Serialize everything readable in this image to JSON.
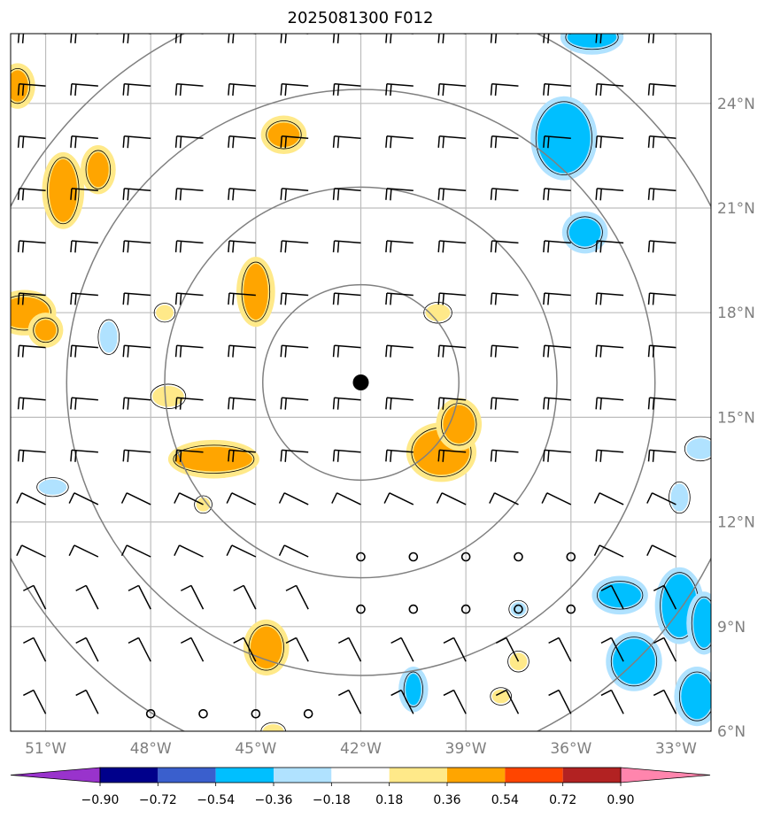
{
  "chart_data": {
    "type": "heatmap",
    "title": "2025081300 F012",
    "map": {
      "lon_range": [
        -52,
        -32
      ],
      "lat_range": [
        6,
        26
      ],
      "lon_ticks": [
        {
          "value": -51,
          "label": "51°W"
        },
        {
          "value": -48,
          "label": "48°W"
        },
        {
          "value": -45,
          "label": "45°W"
        },
        {
          "value": -42,
          "label": "42°W"
        },
        {
          "value": -39,
          "label": "39°W"
        },
        {
          "value": -36,
          "label": "36°W"
        },
        {
          "value": -33,
          "label": "33°W"
        }
      ],
      "lat_ticks": [
        {
          "value": 24,
          "label": "24°N"
        },
        {
          "value": 21,
          "label": "21°N"
        },
        {
          "value": 18,
          "label": "18°N"
        },
        {
          "value": 15,
          "label": "15°N"
        },
        {
          "value": 12,
          "label": "12°N"
        },
        {
          "value": 9,
          "label": "9°N"
        },
        {
          "value": 6,
          "label": "6°N"
        }
      ],
      "grid": true,
      "center": {
        "lon": -42,
        "lat": 16
      },
      "range_rings_deg": [
        2.8,
        5.6,
        8.4,
        11.2
      ],
      "wind_barb_spacing_deg": 1.5
    },
    "colorbar": {
      "orientation": "horizontal",
      "position": "bottom",
      "extend": "both",
      "ticks": [
        "−0.90",
        "−0.72",
        "−0.54",
        "−0.36",
        "−0.18",
        "0.18",
        "0.36",
        "0.54",
        "0.72",
        "0.90"
      ],
      "colors": [
        "#9933cc",
        "#00008b",
        "#3a5fcd",
        "#00bfff",
        "#b0e2ff",
        "#ffffff",
        "#ffe989",
        "#ffa500",
        "#ff4500",
        "#b22222",
        "#ff85ad"
      ]
    },
    "contour_areas": [
      {
        "lon": -51.8,
        "lat": 24.5,
        "rx": 0.3,
        "ry": 0.45,
        "level": 0.36
      },
      {
        "lon": -50.5,
        "lat": 21.5,
        "rx": 0.4,
        "ry": 0.9,
        "level": 0.36
      },
      {
        "lon": -49.5,
        "lat": 22.1,
        "rx": 0.3,
        "ry": 0.5,
        "level": 0.36
      },
      {
        "lon": -44.2,
        "lat": 23.1,
        "rx": 0.45,
        "ry": 0.35,
        "level": 0.36
      },
      {
        "lon": -45.0,
        "lat": 18.6,
        "rx": 0.35,
        "ry": 0.8,
        "level": 0.36
      },
      {
        "lon": -51.6,
        "lat": 18.0,
        "rx": 0.7,
        "ry": 0.45,
        "level": 0.36
      },
      {
        "lon": -51.0,
        "lat": 17.5,
        "rx": 0.3,
        "ry": 0.3,
        "level": 0.36
      },
      {
        "lon": -46.2,
        "lat": 13.8,
        "rx": 1.1,
        "ry": 0.35,
        "level": 0.36
      },
      {
        "lon": -39.7,
        "lat": 14.0,
        "rx": 0.8,
        "ry": 0.65,
        "level": 0.36
      },
      {
        "lon": -39.2,
        "lat": 14.8,
        "rx": 0.45,
        "ry": 0.55,
        "level": 0.36
      },
      {
        "lon": -44.7,
        "lat": 8.4,
        "rx": 0.45,
        "ry": 0.6,
        "level": 0.36
      },
      {
        "lon": -36.2,
        "lat": 23.0,
        "rx": 0.75,
        "ry": 1.0,
        "level": -0.36
      },
      {
        "lon": -35.6,
        "lat": 20.3,
        "rx": 0.45,
        "ry": 0.4,
        "level": -0.36
      },
      {
        "lon": -35.4,
        "lat": 25.9,
        "rx": 0.7,
        "ry": 0.3,
        "level": -0.36
      },
      {
        "lon": -34.6,
        "lat": 9.9,
        "rx": 0.6,
        "ry": 0.35,
        "level": -0.36
      },
      {
        "lon": -34.2,
        "lat": 8.0,
        "rx": 0.6,
        "ry": 0.65,
        "level": -0.36
      },
      {
        "lon": -32.9,
        "lat": 9.6,
        "rx": 0.5,
        "ry": 0.9,
        "level": -0.36
      },
      {
        "lon": -32.4,
        "lat": 7.0,
        "rx": 0.45,
        "ry": 0.65,
        "level": -0.36
      },
      {
        "lon": -32.2,
        "lat": 9.1,
        "rx": 0.3,
        "ry": 0.7,
        "level": -0.36
      },
      {
        "lon": -40.5,
        "lat": 7.2,
        "rx": 0.22,
        "ry": 0.45,
        "level": -0.36
      },
      {
        "lon": -50.8,
        "lat": 13.0,
        "rx": 0.4,
        "ry": 0.22,
        "level": -0.18
      },
      {
        "lon": -49.2,
        "lat": 17.3,
        "rx": 0.25,
        "ry": 0.45,
        "level": -0.18
      },
      {
        "lon": -32.9,
        "lat": 12.7,
        "rx": 0.25,
        "ry": 0.4,
        "level": -0.18
      },
      {
        "lon": -32.3,
        "lat": 14.1,
        "rx": 0.4,
        "ry": 0.3,
        "level": -0.18
      },
      {
        "lon": -37.5,
        "lat": 9.5,
        "rx": 0.22,
        "ry": 0.2,
        "level": -0.18
      },
      {
        "lon": -47.5,
        "lat": 15.6,
        "rx": 0.45,
        "ry": 0.3,
        "level": 0.18
      },
      {
        "lon": -46.5,
        "lat": 12.5,
        "rx": 0.2,
        "ry": 0.2,
        "level": 0.18
      },
      {
        "lon": -47.6,
        "lat": 18.0,
        "rx": 0.25,
        "ry": 0.22,
        "level": 0.18
      },
      {
        "lon": -39.8,
        "lat": 18.0,
        "rx": 0.35,
        "ry": 0.25,
        "level": 0.18
      },
      {
        "lon": -37.5,
        "lat": 8.0,
        "rx": 0.25,
        "ry": 0.25,
        "level": 0.18
      },
      {
        "lon": -38.0,
        "lat": 7.0,
        "rx": 0.25,
        "ry": 0.2,
        "level": 0.18
      },
      {
        "lon": -44.5,
        "lat": 6.0,
        "rx": 0.3,
        "ry": 0.2,
        "level": 0.18
      }
    ]
  }
}
